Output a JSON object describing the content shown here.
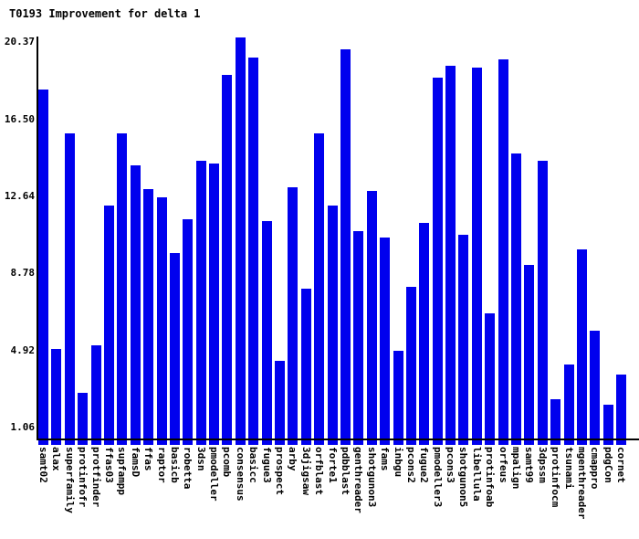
{
  "title": "T0193 Improvement for delta 1",
  "chart_data": {
    "type": "bar",
    "title": "T0193 Improvement for delta 1",
    "xlabel": "",
    "ylabel": "",
    "grid": false,
    "legend": null,
    "background": "#ffffff",
    "bar_color": "#0000ee",
    "axis_color": "#000000",
    "ylim": [
      0.5,
      20.65
    ],
    "y_ticks": [
      20.37,
      16.5,
      12.64,
      8.78,
      4.92,
      1.06
    ],
    "y_tick_labels": [
      "20.37",
      "16.50",
      "12.64",
      "8.78",
      "4.92",
      "1.06"
    ],
    "categories": [
      "samt02",
      "alax",
      "superfamily",
      "protinfofr",
      "protfinder",
      "ffas03",
      "supfampp",
      "famsD",
      "ffas",
      "raptor",
      "basicb",
      "robetta",
      "3dsn",
      "pmodeller",
      "pcomb",
      "consensus",
      "basicc",
      "fugue3",
      "prospect",
      "arby",
      "3djigsaw",
      "orfblast",
      "forte1",
      "pdbblast",
      "genthreader",
      "shotgunon3",
      "fams",
      "inbgu",
      "pcons2",
      "fugue2",
      "pmodeller3",
      "pcons3",
      "shotgunon5",
      "libellula",
      "protinfoab",
      "orfeus",
      "mpalign",
      "samt99",
      "3dpssm",
      "protinfocm",
      "tsunami",
      "mgenthreader",
      "cmappro",
      "pdgCon",
      "cornet"
    ],
    "values": [
      18.0,
      5.0,
      15.8,
      2.8,
      5.2,
      12.2,
      15.8,
      14.2,
      13.0,
      12.6,
      9.8,
      11.5,
      14.4,
      14.3,
      18.7,
      20.6,
      19.6,
      11.4,
      4.4,
      13.1,
      8.0,
      15.8,
      12.2,
      20.0,
      10.9,
      12.9,
      10.6,
      4.9,
      8.1,
      11.3,
      18.6,
      19.2,
      10.7,
      19.1,
      6.8,
      19.5,
      14.8,
      9.2,
      14.4,
      2.5,
      4.2,
      10.0,
      5.9,
      2.2,
      3.7
    ]
  }
}
